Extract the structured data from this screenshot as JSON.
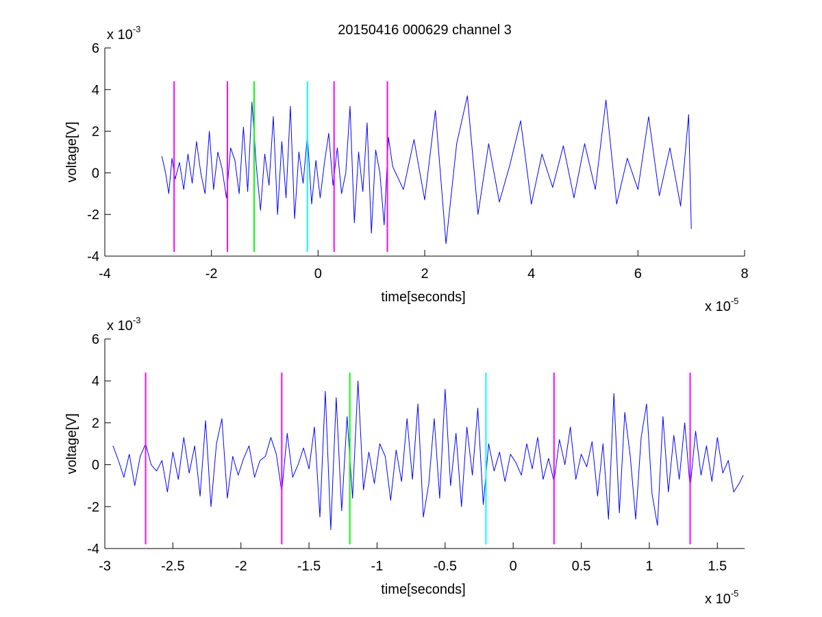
{
  "figure_title": "20150416 000629 channel 3",
  "chart_data": [
    {
      "type": "line",
      "title": "20150416 000629 channel 3",
      "xlabel": "time[seconds]",
      "ylabel": "voltage[V]",
      "x_exponent_label": "x 10",
      "x_exponent": "-5",
      "y_exponent_label": "x 10",
      "y_exponent": "-3",
      "xlim": [
        -4,
        8
      ],
      "ylim": [
        -4,
        6
      ],
      "xticks": [
        -4,
        -2,
        0,
        2,
        4,
        6,
        8
      ],
      "xtick_labels": [
        "-4",
        "-2",
        "0",
        "2",
        "4",
        "6",
        "8"
      ],
      "yticks": [
        -4,
        -2,
        0,
        2,
        4,
        6
      ],
      "ytick_labels": [
        "-4",
        "-2",
        "0",
        "2",
        "4",
        "6"
      ],
      "grid": false,
      "series": [
        {
          "color": "#0000ff",
          "x": [
            -2.93,
            -2.86,
            -2.8,
            -2.74,
            -2.68,
            -2.6,
            -2.52,
            -2.44,
            -2.36,
            -2.28,
            -2.2,
            -2.12,
            -2.04,
            -1.96,
            -1.88,
            -1.8,
            -1.72,
            -1.64,
            -1.56,
            -1.48,
            -1.4,
            -1.32,
            -1.24,
            -1.16,
            -1.08,
            -1.0,
            -0.92,
            -0.84,
            -0.76,
            -0.68,
            -0.6,
            -0.52,
            -0.44,
            -0.36,
            -0.28,
            -0.2,
            -0.12,
            -0.04,
            0.04,
            0.12,
            0.2,
            0.28,
            0.36,
            0.44,
            0.52,
            0.6,
            0.68,
            0.76,
            0.84,
            0.92,
            1.0,
            1.08,
            1.16,
            1.24,
            1.32,
            1.4,
            1.6,
            1.8,
            2.0,
            2.2,
            2.4,
            2.6,
            2.8,
            3.0,
            3.2,
            3.4,
            3.6,
            3.8,
            4.0,
            4.2,
            4.4,
            4.6,
            4.8,
            5.0,
            5.2,
            5.4,
            5.6,
            5.8,
            6.0,
            6.2,
            6.4,
            6.6,
            6.8,
            6.95,
            7.0
          ],
          "y": [
            0.8,
            0.0,
            -1.0,
            0.7,
            -0.3,
            0.5,
            -0.8,
            0.9,
            -0.5,
            1.5,
            0.0,
            -1.0,
            2.0,
            -0.8,
            1.0,
            0.2,
            -1.2,
            1.2,
            0.6,
            -1.0,
            2.2,
            -0.9,
            3.4,
            0.4,
            -1.8,
            0.9,
            -0.6,
            2.7,
            -2.0,
            1.5,
            -1.2,
            3.2,
            -2.2,
            1.0,
            -0.5,
            1.8,
            -1.5,
            0.6,
            -1.2,
            0.5,
            1.9,
            -0.6,
            1.2,
            -1.0,
            0.0,
            3.2,
            -2.4,
            1.0,
            -0.9,
            2.4,
            -2.9,
            1.1,
            0.0,
            -2.5,
            1.7,
            0.3,
            -0.8,
            1.6,
            -1.3,
            3.0,
            -3.4,
            1.4,
            3.7,
            -2.0,
            1.4,
            -1.4,
            0.4,
            2.5,
            -1.5,
            0.9,
            -0.7,
            1.3,
            -1.2,
            1.4,
            -0.8,
            3.5,
            -1.5,
            0.7,
            -0.8,
            2.7,
            -1.1,
            1.2,
            -1.6,
            2.8,
            -2.7
          ]
        }
      ],
      "event_markers": [
        {
          "x": -2.7,
          "color": "#ff00ff"
        },
        {
          "x": -1.7,
          "color": "#ff00ff"
        },
        {
          "x": -1.2,
          "color": "#00ff00"
        },
        {
          "x": -0.2,
          "color": "#00ffff"
        },
        {
          "x": 0.3,
          "color": "#ff00ff"
        },
        {
          "x": 1.3,
          "color": "#ff00ff"
        }
      ],
      "marker_range": [
        -3.8,
        4.4
      ]
    },
    {
      "type": "line",
      "title": "",
      "xlabel": "time[seconds]",
      "ylabel": "voltage[V]",
      "x_exponent_label": "x 10",
      "x_exponent": "-5",
      "y_exponent_label": "x 10",
      "y_exponent": "-3",
      "xlim": [
        -3.0,
        1.7
      ],
      "ylim": [
        -4,
        6
      ],
      "xticks": [
        -3,
        -2.5,
        -2,
        -1.5,
        -1,
        -0.5,
        0,
        0.5,
        1,
        1.5
      ],
      "xtick_labels": [
        "-3",
        "-2.5",
        "-2",
        "-1.5",
        "-1",
        "-0.5",
        "0",
        "0.5",
        "1",
        "1.5"
      ],
      "yticks": [
        -4,
        -2,
        0,
        2,
        4,
        6
      ],
      "ytick_labels": [
        "-4",
        "-2",
        "0",
        "2",
        "4",
        "6"
      ],
      "grid": false,
      "series": [
        {
          "color": "#0000ff",
          "x": [
            -2.94,
            -2.9,
            -2.86,
            -2.82,
            -2.78,
            -2.74,
            -2.7,
            -2.66,
            -2.62,
            -2.58,
            -2.54,
            -2.5,
            -2.46,
            -2.42,
            -2.38,
            -2.34,
            -2.3,
            -2.26,
            -2.22,
            -2.18,
            -2.14,
            -2.1,
            -2.06,
            -2.02,
            -1.98,
            -1.94,
            -1.9,
            -1.86,
            -1.82,
            -1.78,
            -1.74,
            -1.7,
            -1.66,
            -1.62,
            -1.58,
            -1.54,
            -1.5,
            -1.46,
            -1.42,
            -1.38,
            -1.34,
            -1.3,
            -1.26,
            -1.22,
            -1.18,
            -1.14,
            -1.1,
            -1.06,
            -1.02,
            -0.98,
            -0.94,
            -0.9,
            -0.86,
            -0.82,
            -0.78,
            -0.74,
            -0.7,
            -0.66,
            -0.62,
            -0.58,
            -0.54,
            -0.5,
            -0.46,
            -0.42,
            -0.38,
            -0.34,
            -0.3,
            -0.26,
            -0.22,
            -0.18,
            -0.14,
            -0.1,
            -0.06,
            -0.02,
            0.02,
            0.06,
            0.1,
            0.14,
            0.18,
            0.22,
            0.26,
            0.3,
            0.34,
            0.38,
            0.42,
            0.46,
            0.5,
            0.54,
            0.58,
            0.62,
            0.66,
            0.7,
            0.74,
            0.78,
            0.82,
            0.86,
            0.9,
            0.94,
            0.98,
            1.02,
            1.06,
            1.1,
            1.14,
            1.18,
            1.22,
            1.26,
            1.3,
            1.34,
            1.38,
            1.42,
            1.46,
            1.5,
            1.54,
            1.58,
            1.62,
            1.66,
            1.69
          ],
          "y": [
            0.9,
            0.2,
            -0.6,
            0.5,
            -1.0,
            0.4,
            1.0,
            0.0,
            -0.3,
            0.2,
            -1.3,
            0.6,
            -0.7,
            1.3,
            -0.4,
            0.9,
            -1.5,
            2.1,
            -2.0,
            1.0,
            2.2,
            -1.6,
            0.4,
            -0.5,
            0.3,
            0.9,
            -0.6,
            0.2,
            0.4,
            1.3,
            0.5,
            -1.3,
            1.5,
            -0.6,
            0.0,
            0.8,
            -0.2,
            1.8,
            -2.5,
            3.5,
            -3.1,
            3.2,
            -2.2,
            2.3,
            -1.6,
            4.0,
            -1.2,
            0.6,
            -0.9,
            1.0,
            0.4,
            -1.7,
            0.7,
            -0.8,
            2.2,
            -0.7,
            2.9,
            -2.5,
            -0.9,
            2.2,
            -1.6,
            3.6,
            -1.0,
            1.5,
            -2.0,
            1.8,
            -0.5,
            2.7,
            -1.9,
            1.0,
            -0.3,
            0.6,
            -0.8,
            0.5,
            0.1,
            -0.5,
            1.0,
            -0.2,
            1.3,
            -0.7,
            0.3,
            -0.8,
            1.2,
            0.0,
            1.8,
            -0.7,
            0.5,
            -0.1,
            1.1,
            -1.5,
            1.0,
            -2.6,
            3.4,
            -2.3,
            2.5,
            0.4,
            -2.6,
            1.3,
            2.9,
            -1.4,
            -2.9,
            2.3,
            -1.3,
            1.4,
            -0.7,
            2.0,
            -1.1,
            1.6,
            -0.5,
            0.9,
            -0.8,
            1.3,
            -0.4,
            0.2,
            -1.3,
            -0.9,
            -0.5
          ]
        }
      ],
      "event_markers": [
        {
          "x": -2.7,
          "color": "#ff00ff"
        },
        {
          "x": -1.7,
          "color": "#ff00ff"
        },
        {
          "x": -1.2,
          "color": "#00ff00"
        },
        {
          "x": -0.2,
          "color": "#00ffff"
        },
        {
          "x": 0.3,
          "color": "#ff00ff"
        },
        {
          "x": 1.3,
          "color": "#ff00ff"
        }
      ],
      "marker_range": [
        -3.8,
        4.4
      ]
    }
  ]
}
